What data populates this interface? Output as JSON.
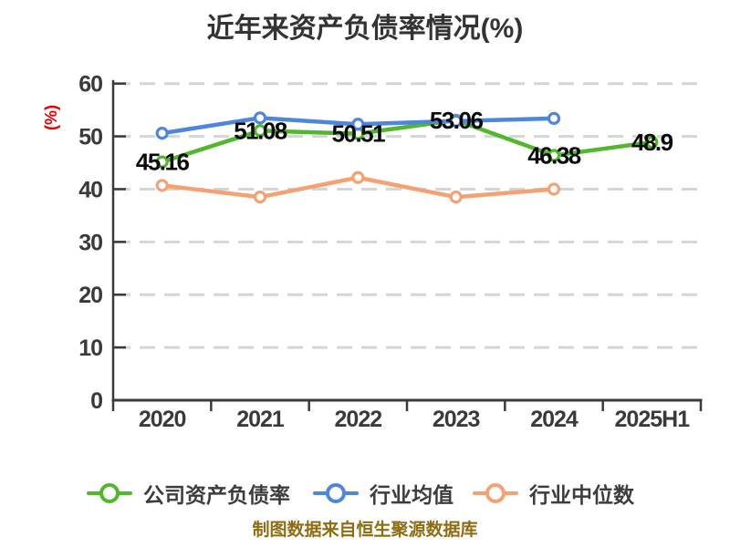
{
  "title": "近年来资产负债率情况(%)",
  "y_axis_unit": "(%)",
  "footer": "制图数据来自恒生聚源数据库",
  "colors": {
    "company_green": "#52b72c",
    "industry_mean_blue": "#4e86db",
    "industry_median_orange": "#f4a173",
    "grid": "#d5d5d5",
    "axis": "#3a3a3a",
    "title_text": "#333333",
    "tick_text": "#3a3a3a",
    "unit_red": "#e60000",
    "footer_gold": "#8e6c12"
  },
  "chart_data": {
    "type": "line",
    "title": "近年来资产负债率情况(%)",
    "xlabel": "",
    "ylabel": "(%)",
    "categories": [
      "2020",
      "2021",
      "2022",
      "2023",
      "2024",
      "2025H1"
    ],
    "series": [
      {
        "name": "公司资产负债率",
        "color": "#52b72c",
        "values": [
          45.16,
          51.08,
          50.51,
          53.06,
          46.38,
          48.9
        ]
      },
      {
        "name": "行业均值",
        "color": "#4e86db",
        "values": [
          50.6,
          53.5,
          52.3,
          52.9,
          53.4,
          null
        ],
        "note": "values estimated from pixel positions; no labels shown in chart"
      },
      {
        "name": "行业中位数",
        "color": "#f4a173",
        "values": [
          40.7,
          38.5,
          42.2,
          38.5,
          40.0,
          null
        ],
        "note": "values estimated from pixel positions; no labels shown in chart"
      }
    ],
    "ylim": [
      0,
      60
    ],
    "yticks": [
      0,
      10,
      20,
      30,
      40,
      50,
      60
    ],
    "grid": "horizontal-dashed",
    "legend_position": "bottom",
    "data_labels": {
      "series": "公司资产负债率",
      "values": [
        "45.16",
        "51.08",
        "50.51",
        "53.06",
        "46.38",
        "48.9"
      ]
    }
  }
}
